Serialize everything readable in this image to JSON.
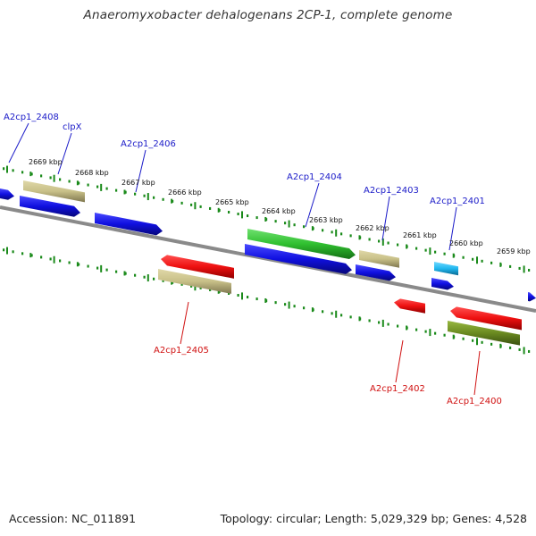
{
  "title": "Anaeromyxobacter dehalogenans 2CP-1, complete genome",
  "footer": {
    "accession": "Accession: NC_011891",
    "info": "Topology: circular; Length: 5,029,329 bp; Genes: 4,528"
  },
  "colors": {
    "blue": "#1010e0",
    "red": "#ee1010",
    "green": "#30c030",
    "tan": "#c8c088",
    "cyan": "#20b8f0",
    "olive": "#6a8a20",
    "backbone": "#7a7a7a",
    "tick": "#1a8a1a",
    "label_forward": "#1a1ac8",
    "label_reverse": "#d01010"
  },
  "scale": {
    "labels": [
      "2669 kbp",
      "2668 kbp",
      "2667 kbp",
      "2666 kbp",
      "2665 kbp",
      "2664 kbp",
      "2663 kbp",
      "2662 kbp",
      "2661 kbp",
      "2660 kbp",
      "2659 kbp"
    ]
  },
  "labels": {
    "forward": [
      "A2cp1_2408",
      "clpX",
      "A2cp1_2406",
      "A2cp1_2404",
      "A2cp1_2403",
      "A2cp1_2401"
    ],
    "reverse": [
      "A2cp1_2405",
      "A2cp1_2402",
      "A2cp1_2400"
    ]
  }
}
